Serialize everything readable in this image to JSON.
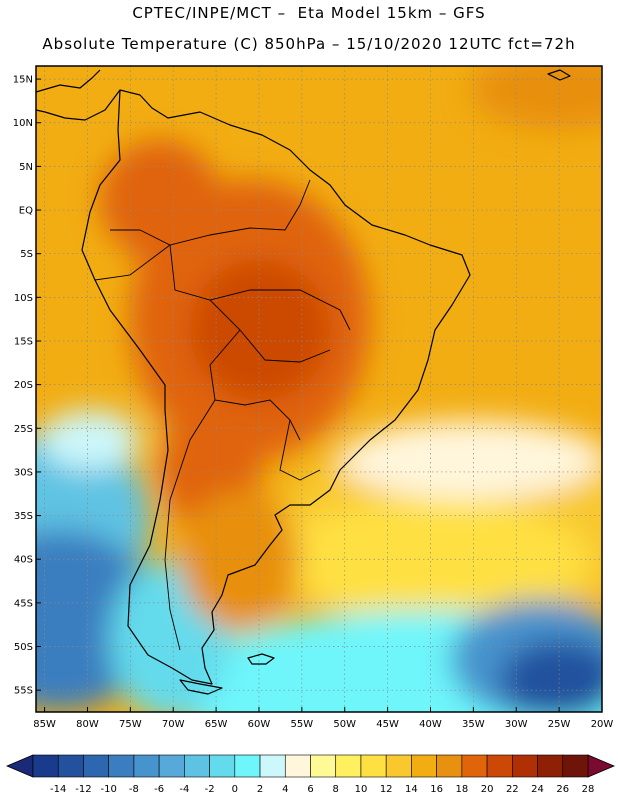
{
  "header": {
    "line1": "CPTEC/INPE/MCT –  Eta Model 15km – GFS",
    "line2": "Absolute Temperature (C) 850hPa – 15/10/2020 12UTC fct=72h"
  },
  "map": {
    "lat_labels": [
      "15N",
      "10N",
      "5N",
      "EQ",
      "5S",
      "10S",
      "15S",
      "20S",
      "25S",
      "30S",
      "35S",
      "40S",
      "45S",
      "50S",
      "55S"
    ],
    "lat_values": [
      15,
      10,
      5,
      0,
      -5,
      -10,
      -15,
      -20,
      -25,
      -30,
      -35,
      -40,
      -45,
      -50,
      -55
    ],
    "lon_labels": [
      "85W",
      "80W",
      "75W",
      "70W",
      "65W",
      "60W",
      "55W",
      "50W",
      "45W",
      "40W",
      "35W",
      "30W",
      "25W",
      "20W"
    ],
    "lon_values": [
      -85,
      -80,
      -75,
      -70,
      -65,
      -60,
      -55,
      -50,
      -45,
      -40,
      -35,
      -30,
      -25,
      -20
    ],
    "lat_range": [
      -57.5,
      16.5
    ],
    "lon_range": [
      -86,
      -20
    ]
  },
  "colorbar": {
    "labels": [
      "-14",
      "-12",
      "-10",
      "-8",
      "-6",
      "-4",
      "-2",
      "0",
      "2",
      "4",
      "6",
      "8",
      "10",
      "12",
      "14",
      "16",
      "18",
      "20",
      "22",
      "24",
      "26",
      "28"
    ],
    "colors": [
      "#1a3a8c",
      "#23519e",
      "#2d67b0",
      "#3a7ec0",
      "#4793cd",
      "#56a9d9",
      "#5ec3e3",
      "#64dbec",
      "#6ef6fb",
      "#ccf7fb",
      "#fff6dc",
      "#fffa96",
      "#fff060",
      "#ffe042",
      "#f8c82e",
      "#f2ad12",
      "#e89010",
      "#e0640a",
      "#cc4806",
      "#b03006",
      "#8e2006",
      "#6e1408"
    ],
    "low_color": "#1a2a78",
    "high_color": "#7a0a30"
  }
}
